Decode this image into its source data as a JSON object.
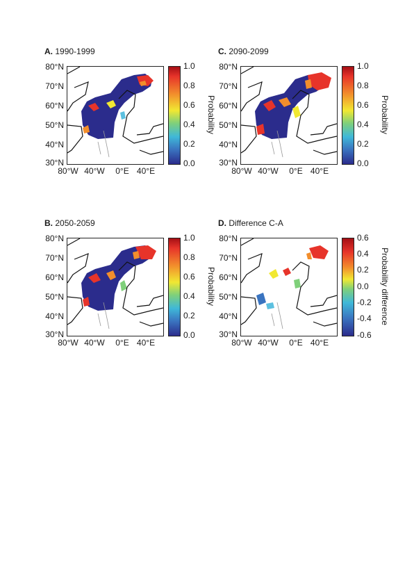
{
  "panels": [
    {
      "letter": "A.",
      "period": "1990-1999"
    },
    {
      "letter": "C.",
      "period": "2090-2099"
    },
    {
      "letter": "B.",
      "period": "2050-2059"
    },
    {
      "letter": "D.",
      "period": "Difference C-A"
    }
  ],
  "axes": {
    "lat_ticks": [
      "80°N",
      "70°N",
      "60°N",
      "50°N",
      "40°N",
      "30°N"
    ],
    "lon_ticks": [
      "80°W",
      "40°W",
      "0°E",
      "40°E"
    ]
  },
  "colorbars": {
    "probability": {
      "label": "Probability",
      "ticks": [
        "1.0",
        "0.8",
        "0.6",
        "0.4",
        "0.2",
        "0.0"
      ],
      "range": [
        0.0,
        1.0
      ]
    },
    "difference": {
      "label": "Probability difference",
      "ticks": [
        "0.6",
        "0.4",
        "0.2",
        "0.0",
        "-0.2",
        "-0.4",
        "-0.6"
      ],
      "range": [
        -0.6,
        0.6
      ]
    }
  },
  "colors": {
    "low": "#2b2c8c",
    "mid": "#f1e832",
    "high": "#c8262a",
    "diff_neutral": "#ffffff"
  }
}
